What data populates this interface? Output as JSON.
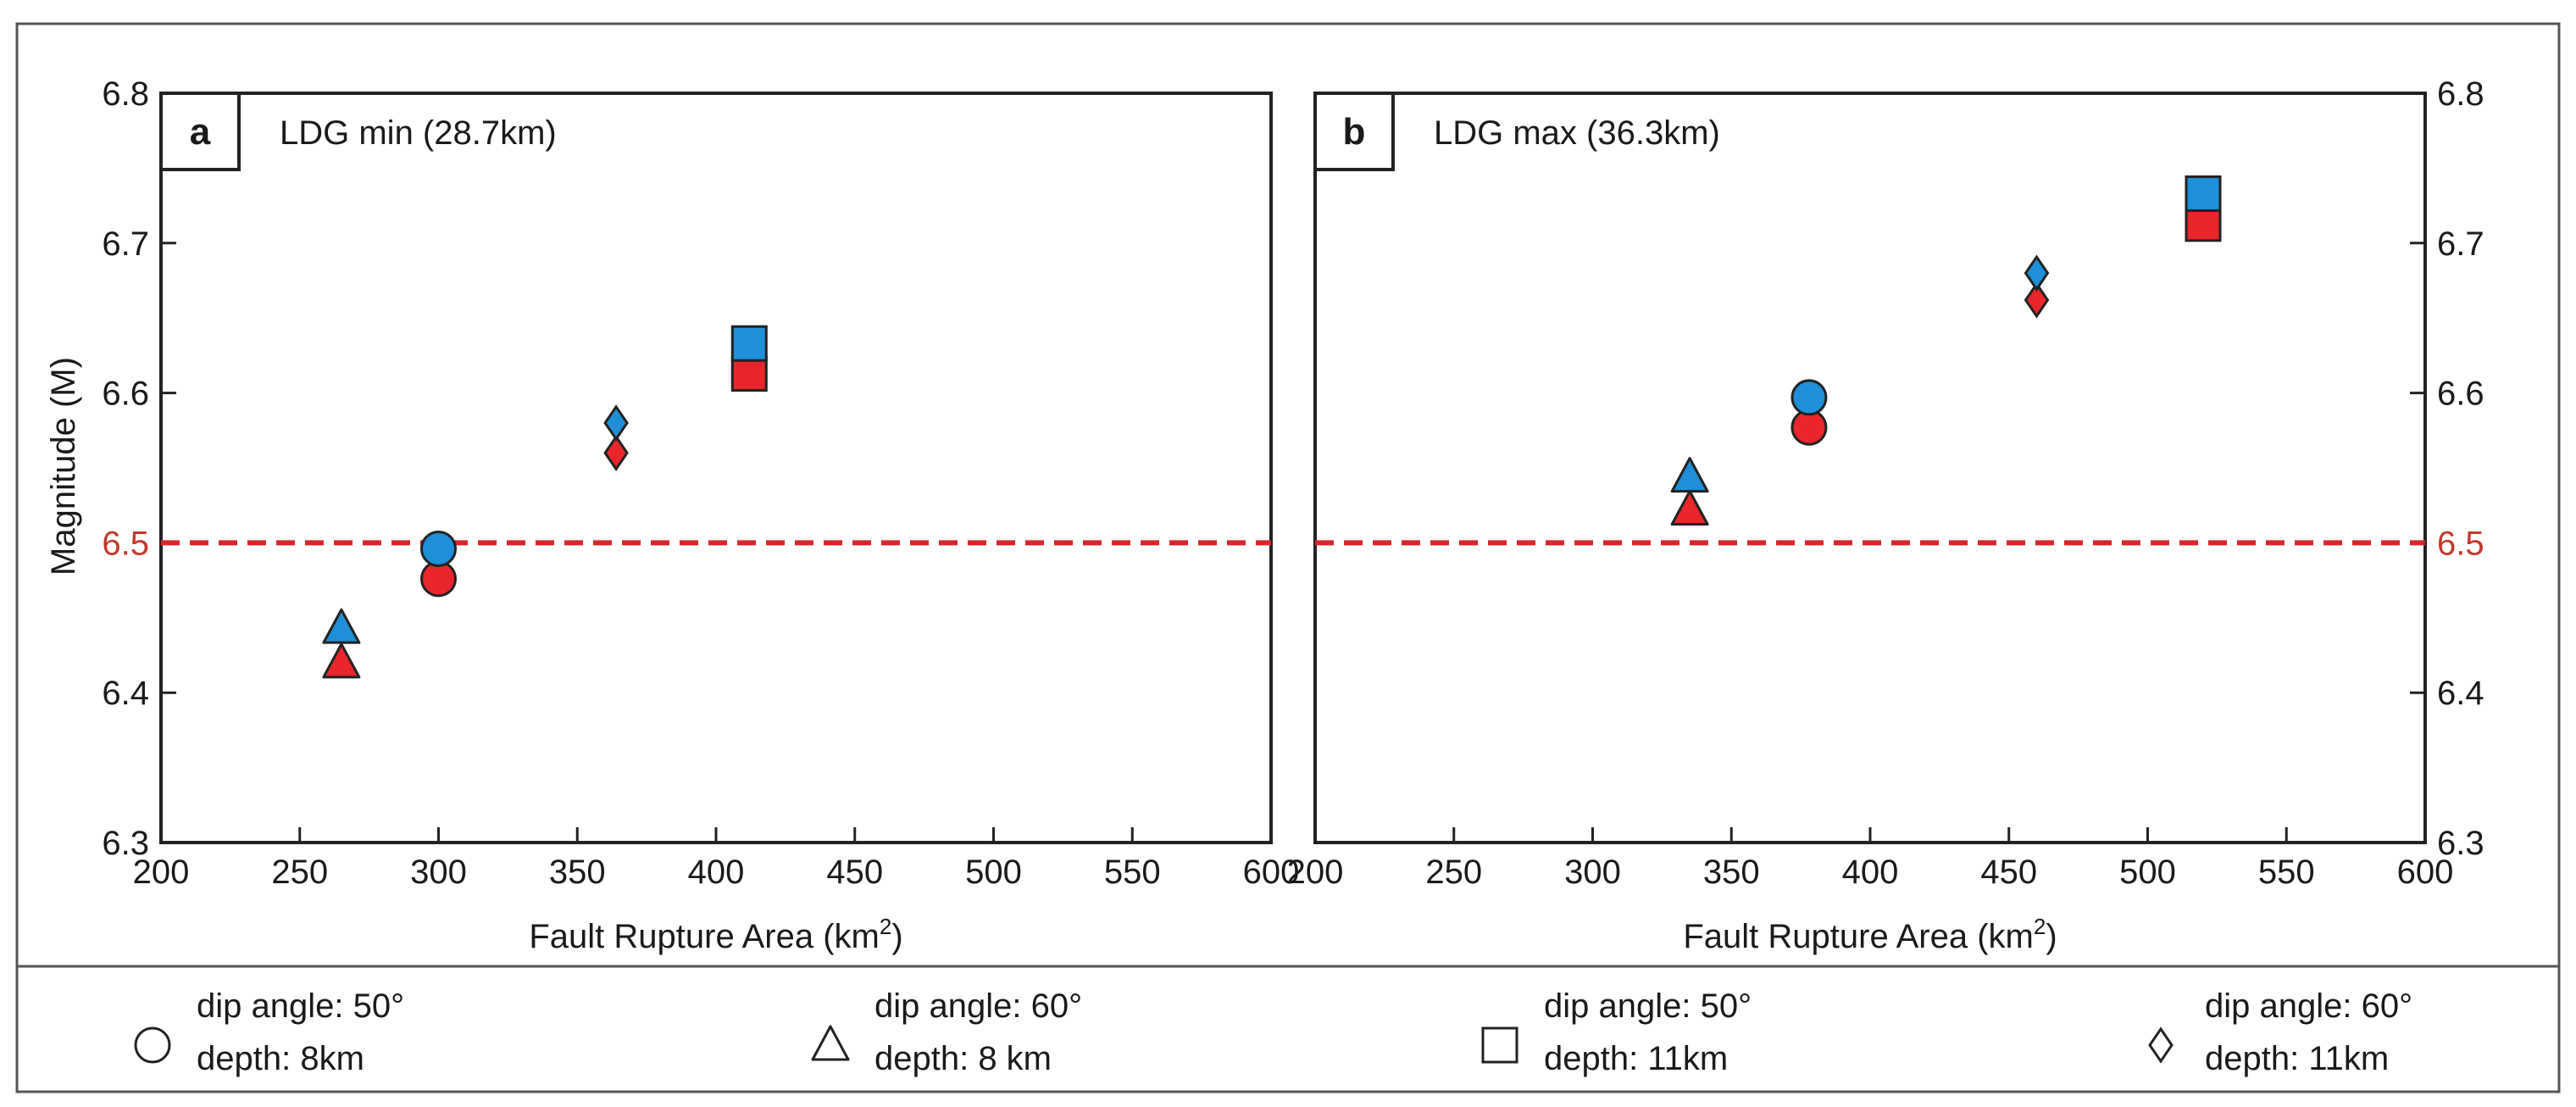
{
  "chart_data": [
    {
      "type": "scatter",
      "panel_letter": "a",
      "title": "LDG min (28.7km)",
      "xlabel": "Fault Rupture Area (km",
      "xlabel_sup": "2",
      "xlabel_close": ")",
      "ylabel": "Magnitude (M)",
      "xlim": [
        200,
        600
      ],
      "ylim": [
        6.3,
        6.8
      ],
      "xticks": [
        200,
        250,
        300,
        350,
        400,
        450,
        500,
        550,
        600
      ],
      "yticks": [
        6.3,
        6.4,
        6.5,
        6.6,
        6.7,
        6.8
      ],
      "ytick_labels": [
        "6.3",
        "6.4",
        "6.5",
        "6.6",
        "6.7",
        "6.8"
      ],
      "ytick_side": "left",
      "reference_line": {
        "y": 6.5,
        "color": "#d7262a",
        "style": "dashed"
      },
      "highlight_tick": {
        "value": 6.5,
        "color": "#c0392b"
      },
      "series": [
        {
          "name": "blue",
          "color": "#1e8fd8",
          "points": [
            {
              "x": 265,
              "y": 6.443,
              "marker": "triangle"
            },
            {
              "x": 300,
              "y": 6.496,
              "marker": "circle"
            },
            {
              "x": 364,
              "y": 6.58,
              "marker": "diamond"
            },
            {
              "x": 412,
              "y": 6.633,
              "marker": "square"
            }
          ]
        },
        {
          "name": "red",
          "color": "#e8262b",
          "points": [
            {
              "x": 265,
              "y": 6.42,
              "marker": "triangle"
            },
            {
              "x": 300,
              "y": 6.476,
              "marker": "circle"
            },
            {
              "x": 364,
              "y": 6.56,
              "marker": "diamond"
            },
            {
              "x": 412,
              "y": 6.613,
              "marker": "square"
            }
          ]
        }
      ]
    },
    {
      "type": "scatter",
      "panel_letter": "b",
      "title": "LDG max (36.3km)",
      "xlabel": "Fault Rupture Area (km",
      "xlabel_sup": "2",
      "xlabel_close": ")",
      "ylabel": "",
      "xlim": [
        200,
        600
      ],
      "ylim": [
        6.3,
        6.8
      ],
      "xticks": [
        200,
        250,
        300,
        350,
        400,
        450,
        500,
        550,
        600
      ],
      "yticks": [
        6.3,
        6.4,
        6.5,
        6.6,
        6.7,
        6.8
      ],
      "ytick_labels": [
        "6.3",
        "6.4",
        "6.5",
        "6.6",
        "6.7",
        "6.8"
      ],
      "ytick_side": "right",
      "reference_line": {
        "y": 6.5,
        "color": "#d7262a",
        "style": "dashed"
      },
      "highlight_tick": {
        "value": 6.5,
        "color": "#c0392b"
      },
      "series": [
        {
          "name": "blue",
          "color": "#1e8fd8",
          "points": [
            {
              "x": 335,
              "y": 6.544,
              "marker": "triangle"
            },
            {
              "x": 378,
              "y": 6.597,
              "marker": "circle"
            },
            {
              "x": 460,
              "y": 6.68,
              "marker": "diamond"
            },
            {
              "x": 520,
              "y": 6.733,
              "marker": "square"
            }
          ]
        },
        {
          "name": "red",
          "color": "#e8262b",
          "points": [
            {
              "x": 335,
              "y": 6.522,
              "marker": "triangle"
            },
            {
              "x": 378,
              "y": 6.577,
              "marker": "circle"
            },
            {
              "x": 460,
              "y": 6.662,
              "marker": "diamond"
            },
            {
              "x": 520,
              "y": 6.713,
              "marker": "square"
            }
          ]
        }
      ]
    }
  ],
  "legend": [
    {
      "marker": "circle",
      "line1": "dip angle: 50°",
      "line2": "depth: 8km"
    },
    {
      "marker": "triangle",
      "line1": "dip angle: 60°",
      "line2": "depth: 8 km"
    },
    {
      "marker": "square",
      "line1": "dip angle: 50°",
      "line2": "depth: 11km"
    },
    {
      "marker": "diamond",
      "line1": "dip angle: 60°",
      "line2": "depth: 11km"
    }
  ],
  "colors": {
    "frame": "#555555",
    "axis": "#222222",
    "text": "#1a1a1a"
  }
}
